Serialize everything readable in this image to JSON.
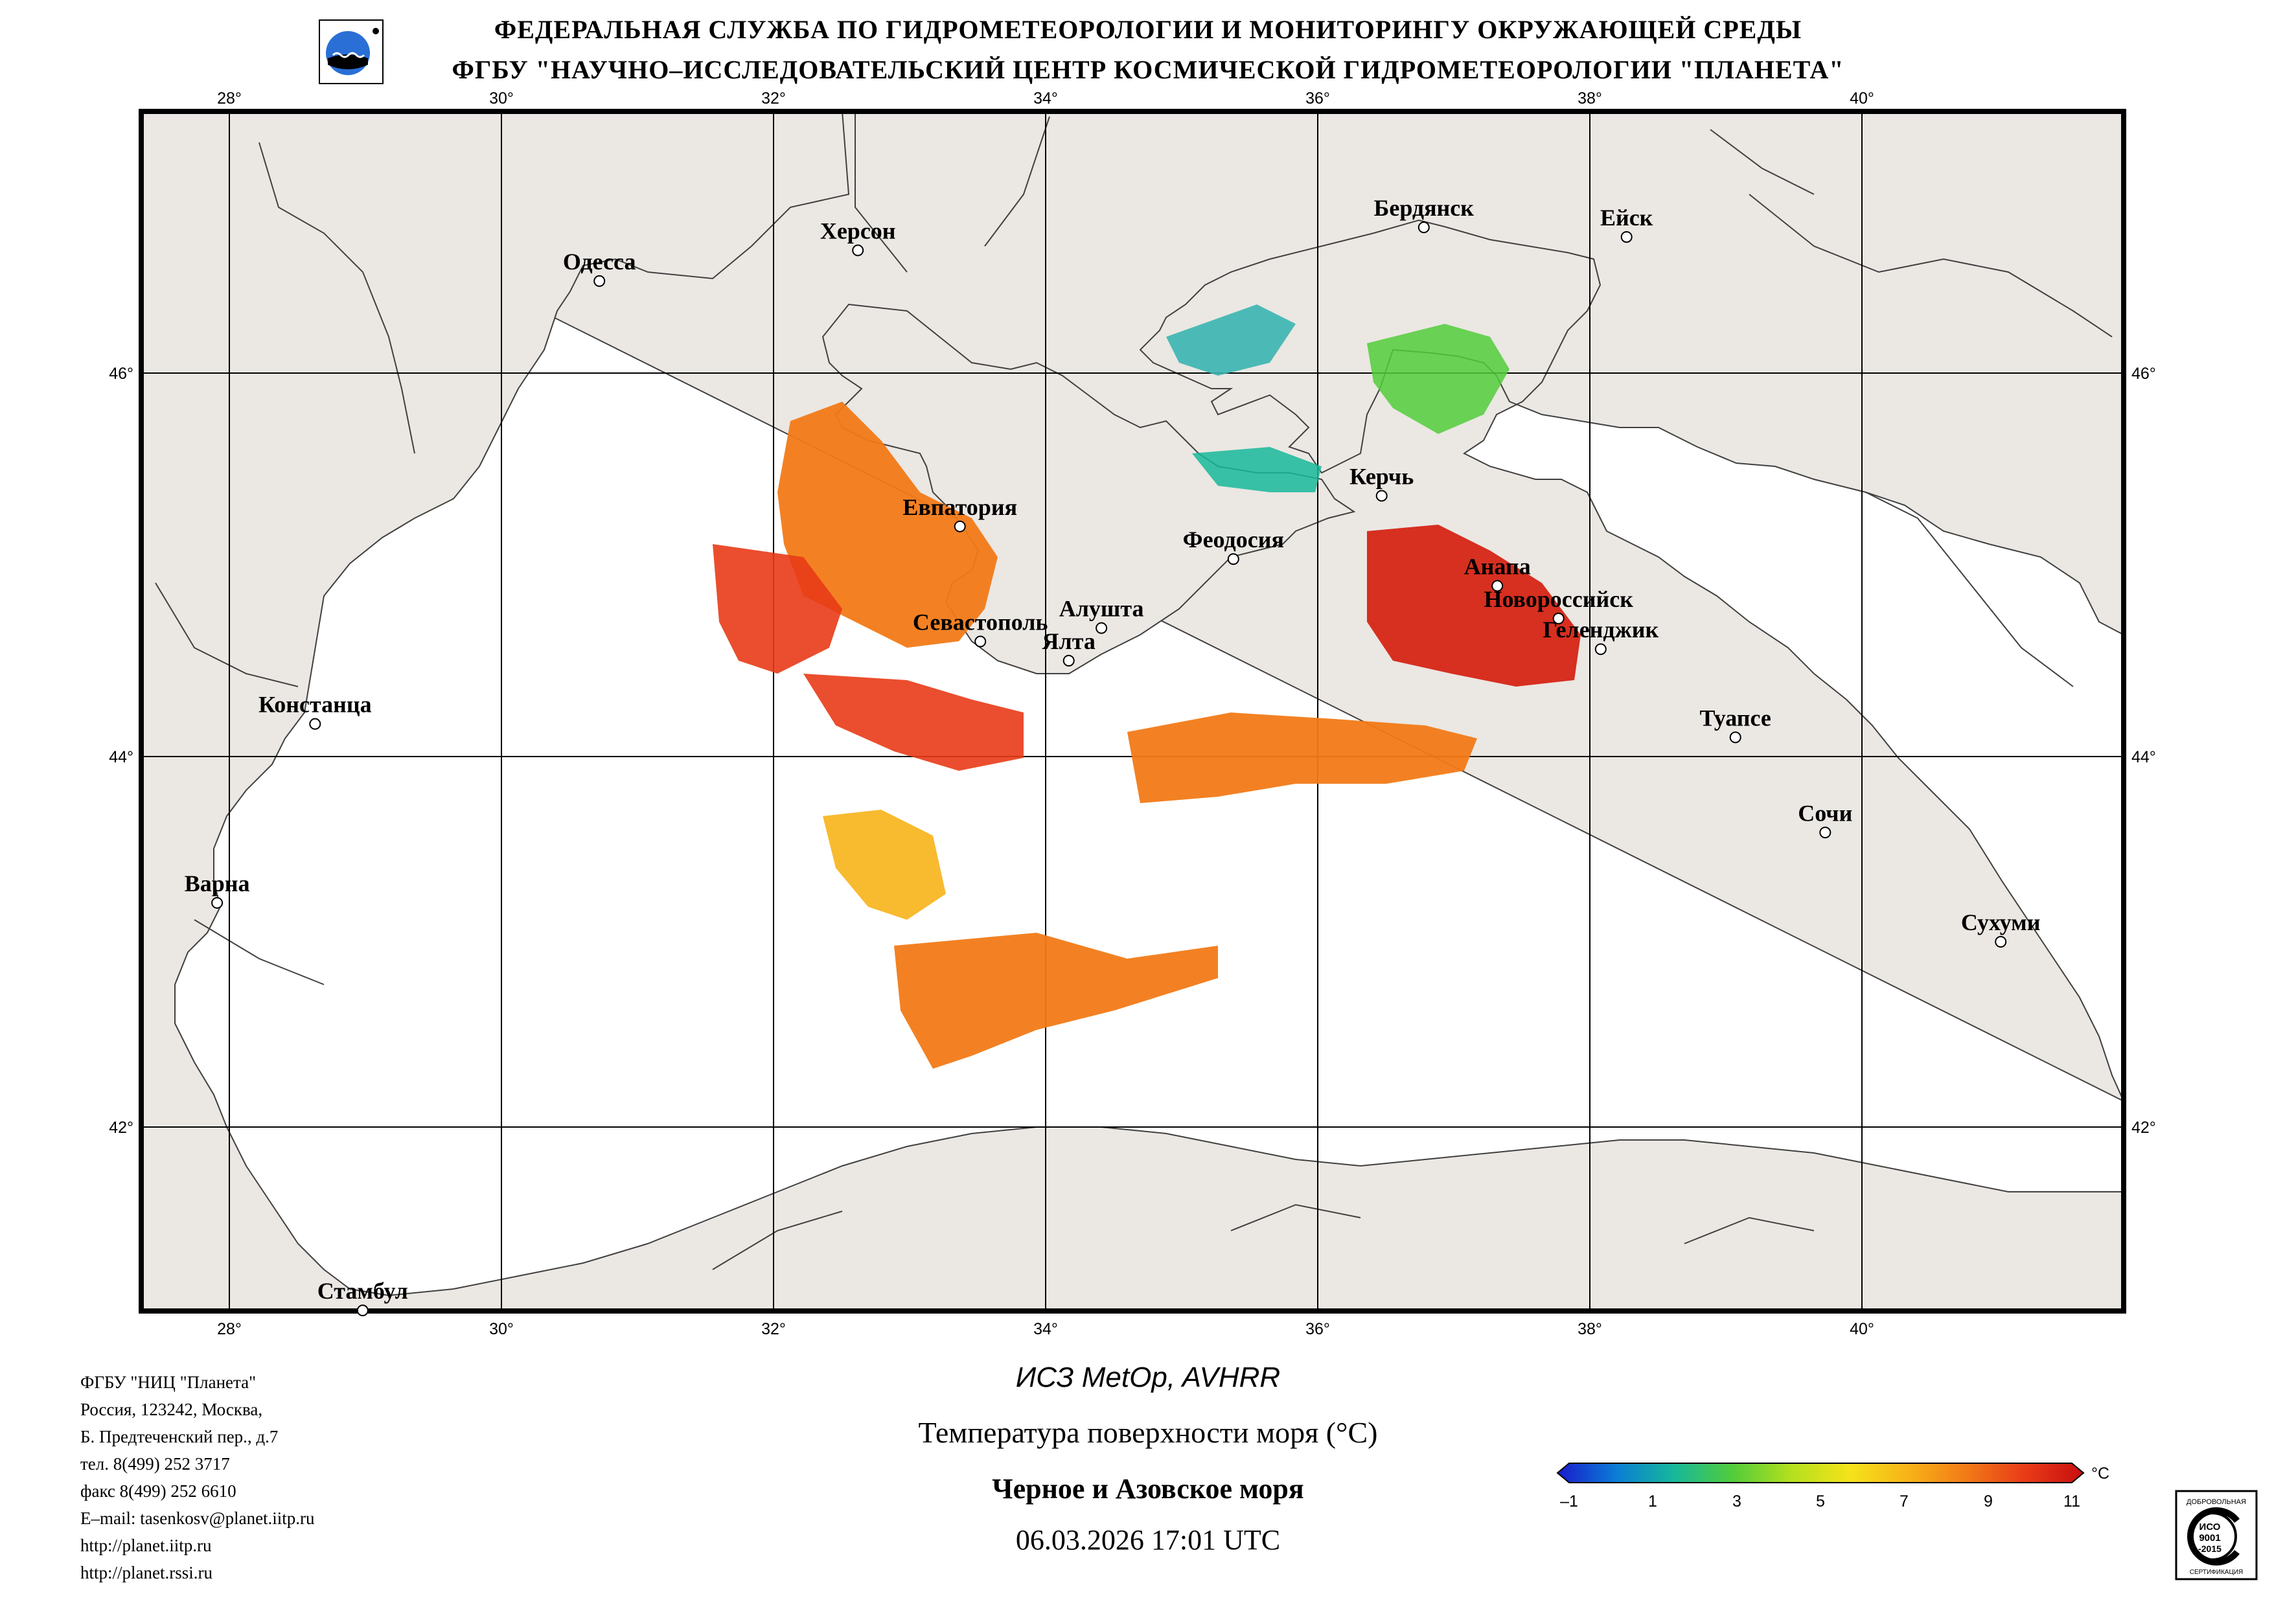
{
  "header": {
    "line1": "ФЕДЕРАЛЬНАЯ СЛУЖБА ПО ГИДРОМЕТЕОРОЛОГИИ И МОНИТОРИНГУ ОКРУЖАЮЩЕЙ СРЕДЫ",
    "line2": "ФГБУ \"НАУЧНО–ИССЛЕДОВАТЕЛЬСКИЙ ЦЕНТР КОСМИЧЕСКОЙ ГИДРОМЕТЕОРОЛОГИИ \"ПЛАНЕТА\""
  },
  "map": {
    "lon_labels": [
      "28°",
      "30°",
      "32°",
      "34°",
      "36°",
      "38°",
      "40°"
    ],
    "lat_labels": [
      "46°",
      "44°",
      "42°"
    ],
    "cities": [
      {
        "name": "Одесса",
        "lon": 30.72,
        "lat": 46.48
      },
      {
        "name": "Херсон",
        "lon": 32.62,
        "lat": 46.64
      },
      {
        "name": "Бердянск",
        "lon": 36.78,
        "lat": 46.76
      },
      {
        "name": "Ейск",
        "lon": 38.27,
        "lat": 46.71
      },
      {
        "name": "Керчь",
        "lon": 36.47,
        "lat": 45.36
      },
      {
        "name": "Евпатория",
        "lon": 33.37,
        "lat": 45.2
      },
      {
        "name": "Феодосия",
        "lon": 35.38,
        "lat": 45.03
      },
      {
        "name": "Анапа",
        "lon": 37.32,
        "lat": 44.89
      },
      {
        "name": "Новороссийск",
        "lon": 37.77,
        "lat": 44.72
      },
      {
        "name": "Геленджик",
        "lon": 38.08,
        "lat": 44.56
      },
      {
        "name": "Севастополь",
        "lon": 33.52,
        "lat": 44.6
      },
      {
        "name": "Алушта",
        "lon": 34.41,
        "lat": 44.67
      },
      {
        "name": "Ялта",
        "lon": 34.17,
        "lat": 44.5
      },
      {
        "name": "Констанца",
        "lon": 28.63,
        "lat": 44.17
      },
      {
        "name": "Туапсе",
        "lon": 39.07,
        "lat": 44.1
      },
      {
        "name": "Сочи",
        "lon": 39.73,
        "lat": 43.59
      },
      {
        "name": "Варна",
        "lon": 27.91,
        "lat": 43.21
      },
      {
        "name": "Сухуми",
        "lon": 41.02,
        "lat": 43.0
      },
      {
        "name": "Стамбул",
        "lon": 28.98,
        "lat": 41.01
      }
    ]
  },
  "colors": {
    "land": "#ebe7e3",
    "sea": "#ffffff",
    "grid": "#000000"
  },
  "sst": {
    "value_range": [
      -1,
      11
    ]
  },
  "colorbar": {
    "ticks": [
      "–1",
      "1",
      "3",
      "5",
      "7",
      "9",
      "11"
    ],
    "unit": "°C",
    "stops": [
      "#1a1acc",
      "#0a7cd6",
      "#17b89a",
      "#52cc3a",
      "#b4e01e",
      "#f5e31a",
      "#f7b318",
      "#f27a17",
      "#e83b17",
      "#c80d10"
    ]
  },
  "contacts": [
    "ФГБУ \"НИЦ \"Планета\"",
    "Россия, 123242, Москва,",
    "Б. Предтеченский пер., д.7",
    "тел. 8(499) 252 3717",
    "факс 8(499) 252 6610",
    "E–mail: tasenkosv@planet.iitp.ru",
    "http://planet.iitp.ru",
    "http://planet.rssi.ru"
  ],
  "footer": {
    "satellite": "ИСЗ MetOp, AVHRR",
    "parameter": "Температура поверхности моря (°C)",
    "region": "Черное и Азовское моря",
    "datetime": "06.03.2026 17:01 UTC"
  },
  "logos": {
    "org_logo": "Планета",
    "certificate": [
      "ДОБРОВОЛЬНАЯ",
      "ИСО",
      "9001",
      "-2015",
      "СЕРТИФИКАЦИЯ"
    ]
  }
}
